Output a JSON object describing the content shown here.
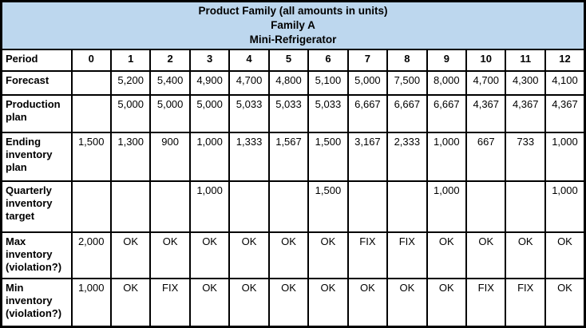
{
  "header": {
    "lines": [
      "Product Family (all amounts in units)",
      "Family A",
      "Mini-Refrigerator"
    ]
  },
  "table": {
    "period_row": {
      "label": "Period",
      "cells": [
        "0",
        "1",
        "2",
        "3",
        "4",
        "5",
        "6",
        "7",
        "8",
        "9",
        "10",
        "11",
        "12"
      ]
    },
    "rows": [
      {
        "label": "Forecast",
        "cells": [
          "",
          "5,200",
          "5,400",
          "4,900",
          "4,700",
          "4,800",
          "5,100",
          "5,000",
          "7,500",
          "8,000",
          "4,700",
          "4,300",
          "4,100"
        ]
      },
      {
        "label": "Production plan",
        "cells": [
          "",
          "5,000",
          "5,000",
          "5,000",
          "5,033",
          "5,033",
          "5,033",
          "6,667",
          "6,667",
          "6,667",
          "4,367",
          "4,367",
          "4,367"
        ]
      },
      {
        "label": "Ending inventory plan",
        "cells": [
          "1,500",
          "1,300",
          "900",
          "1,000",
          "1,333",
          "1,567",
          "1,500",
          "3,167",
          "2,333",
          "1,000",
          "667",
          "733",
          "1,000"
        ]
      },
      {
        "label": "Quarterly inventory target",
        "cells": [
          "",
          "",
          "",
          "1,000",
          "",
          "",
          "1,500",
          "",
          "",
          "1,000",
          "",
          "",
          "1,000"
        ]
      },
      {
        "label": "Max inventory (violation?)",
        "cells": [
          "2,000",
          "OK",
          "OK",
          "OK",
          "OK",
          "OK",
          "OK",
          "FIX",
          "FIX",
          "OK",
          "OK",
          "OK",
          "OK"
        ]
      },
      {
        "label": "Min inventory (violation?)",
        "cells": [
          "1,000",
          "OK",
          "FIX",
          "OK",
          "OK",
          "OK",
          "OK",
          "OK",
          "OK",
          "OK",
          "FIX",
          "FIX",
          "OK"
        ]
      }
    ]
  },
  "colors": {
    "header_bg": "#BDD7EE",
    "grid": "#000000",
    "cell_bg": "#FFFFFF",
    "text": "#000000"
  }
}
